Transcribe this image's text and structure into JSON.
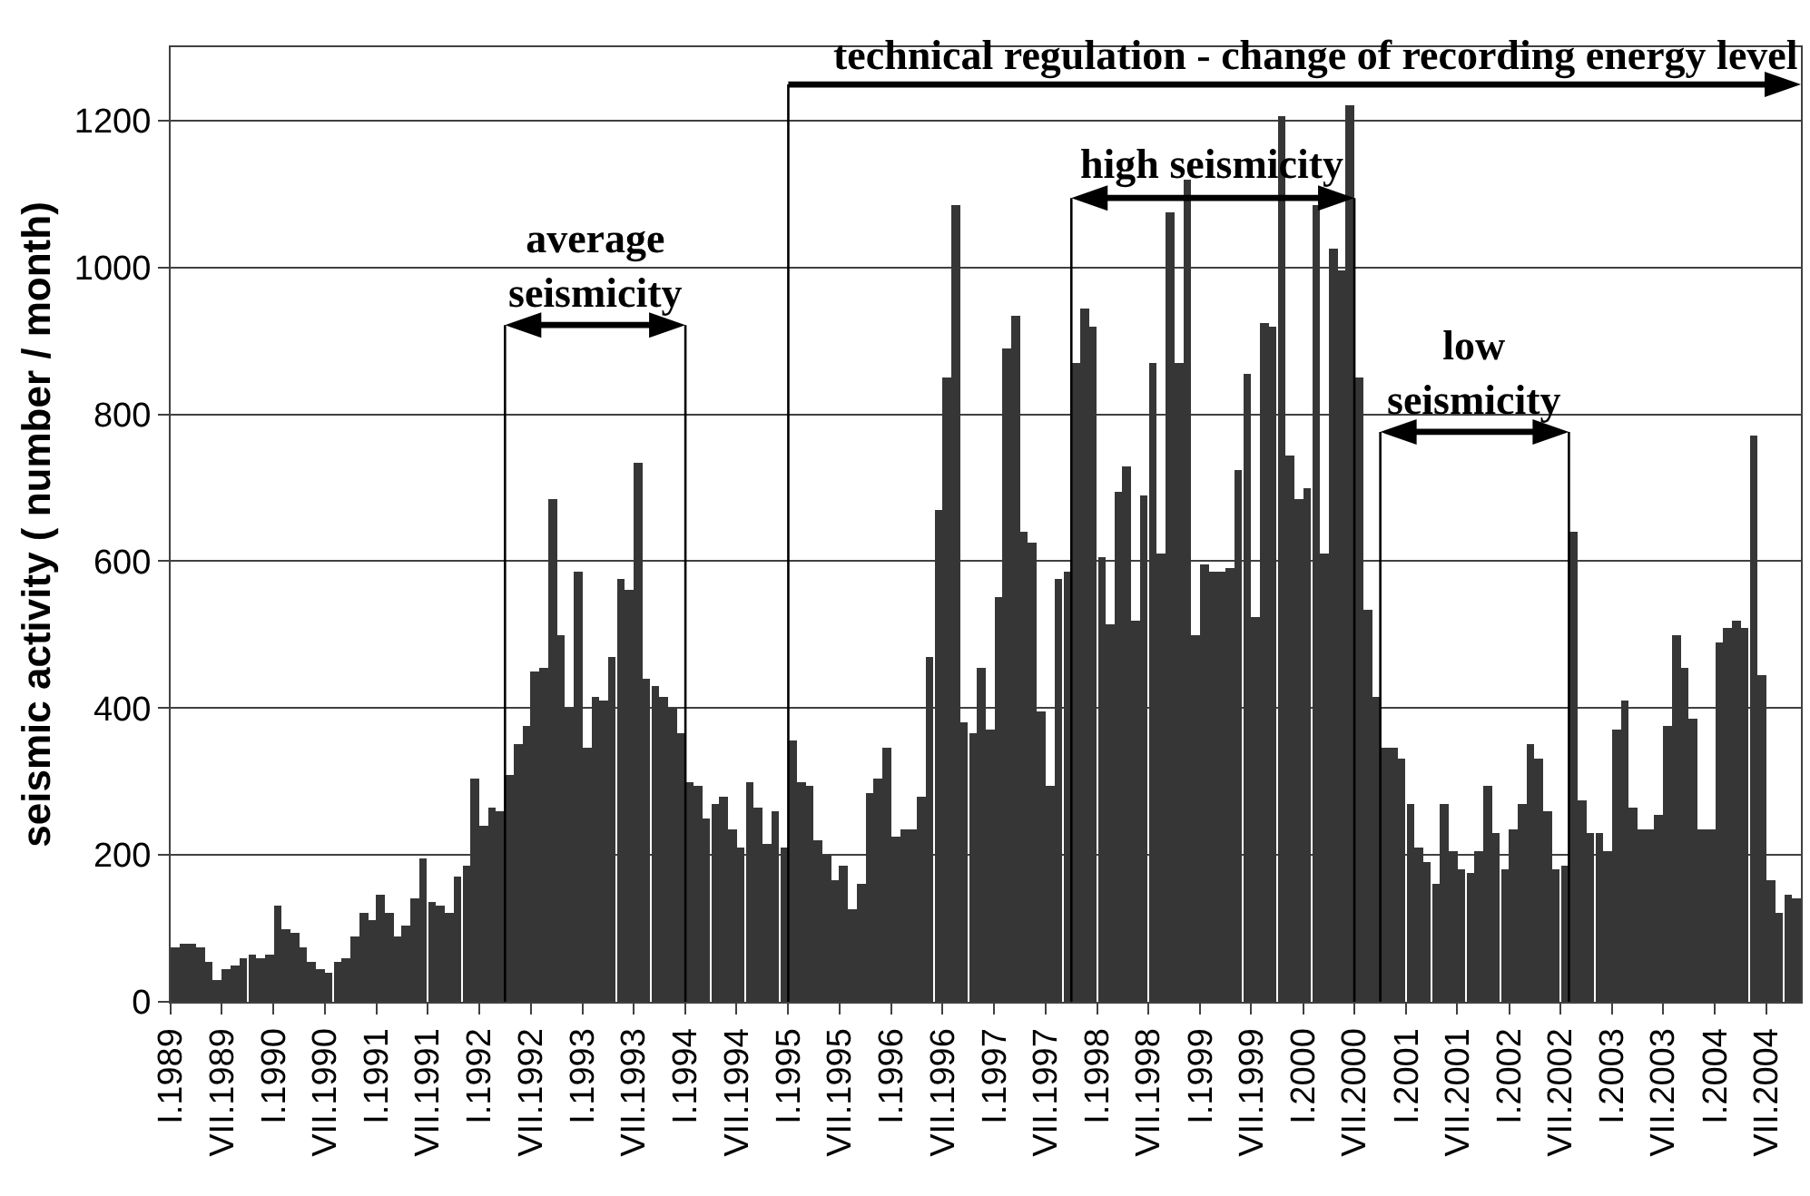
{
  "chart_data": {
    "type": "bar",
    "ylabel": "seismic activity ( number / month)",
    "color": "#363636",
    "x": [
      "1989-01",
      "1989-02",
      "1989-03",
      "1989-04",
      "1989-05",
      "1989-06",
      "1989-07",
      "1989-08",
      "1989-09",
      "1989-10",
      "1989-11",
      "1989-12",
      "1990-01",
      "1990-02",
      "1990-03",
      "1990-04",
      "1990-05",
      "1990-06",
      "1990-07",
      "1990-08",
      "1990-09",
      "1990-10",
      "1990-11",
      "1990-12",
      "1991-01",
      "1991-02",
      "1991-03",
      "1991-04",
      "1991-05",
      "1991-06",
      "1991-07",
      "1991-08",
      "1991-09",
      "1991-10",
      "1991-11",
      "1991-12",
      "1992-01",
      "1992-02",
      "1992-03",
      "1992-04",
      "1992-05",
      "1992-06",
      "1992-07",
      "1992-08",
      "1992-09",
      "1992-10",
      "1992-11",
      "1992-12",
      "1993-01",
      "1993-02",
      "1993-03",
      "1993-04",
      "1993-05",
      "1993-06",
      "1993-07",
      "1993-08",
      "1993-09",
      "1993-10",
      "1993-11",
      "1993-12",
      "1994-01",
      "1994-02",
      "1994-03",
      "1994-04",
      "1994-05",
      "1994-06",
      "1994-07",
      "1994-08",
      "1994-09",
      "1994-10",
      "1994-11",
      "1994-12",
      "1995-01",
      "1995-02",
      "1995-03",
      "1995-04",
      "1995-05",
      "1995-06",
      "1995-07",
      "1995-08",
      "1995-09",
      "1995-10",
      "1995-11",
      "1995-12",
      "1996-01",
      "1996-02",
      "1996-03",
      "1996-04",
      "1996-05",
      "1996-06",
      "1996-07",
      "1996-08",
      "1996-09",
      "1996-10",
      "1996-11",
      "1996-12",
      "1997-01",
      "1997-02",
      "1997-03",
      "1997-04",
      "1997-05",
      "1997-06",
      "1997-07",
      "1997-08",
      "1997-09",
      "1997-10",
      "1997-11",
      "1997-12",
      "1998-01",
      "1998-02",
      "1998-03",
      "1998-04",
      "1998-05",
      "1998-06",
      "1998-07",
      "1998-08",
      "1998-09",
      "1998-10",
      "1998-11",
      "1998-12",
      "1999-01",
      "1999-02",
      "1999-03",
      "1999-04",
      "1999-05",
      "1999-06",
      "1999-07",
      "1999-08",
      "1999-09",
      "1999-10",
      "1999-11",
      "1999-12",
      "2000-01",
      "2000-02",
      "2000-03",
      "2000-04",
      "2000-05",
      "2000-06",
      "2000-07",
      "2000-08",
      "2000-09",
      "2000-10",
      "2000-11",
      "2000-12",
      "2001-01",
      "2001-02",
      "2001-03",
      "2001-04",
      "2001-05",
      "2001-06",
      "2001-07",
      "2001-08",
      "2001-09",
      "2001-10",
      "2001-11",
      "2001-12",
      "2002-01",
      "2002-02",
      "2002-03",
      "2002-04",
      "2002-05",
      "2002-06",
      "2002-07",
      "2002-08",
      "2002-09",
      "2002-10",
      "2002-11",
      "2002-12",
      "2003-01",
      "2003-02",
      "2003-03",
      "2003-04",
      "2003-05",
      "2003-06",
      "2003-07",
      "2003-08",
      "2003-09",
      "2003-10",
      "2003-11",
      "2003-12",
      "2004-01",
      "2004-02",
      "2004-03",
      "2004-04",
      "2004-05",
      "2004-06",
      "2004-07",
      "2004-08",
      "2004-09",
      "2004-10"
    ],
    "values": [
      75,
      80,
      80,
      75,
      55,
      30,
      45,
      50,
      60,
      65,
      60,
      65,
      130,
      100,
      95,
      75,
      55,
      45,
      40,
      55,
      60,
      90,
      120,
      110,
      145,
      120,
      90,
      105,
      140,
      195,
      135,
      130,
      120,
      170,
      185,
      305,
      240,
      265,
      260,
      310,
      350,
      375,
      450,
      455,
      685,
      500,
      400,
      585,
      345,
      415,
      410,
      470,
      575,
      560,
      735,
      440,
      430,
      415,
      400,
      365,
      300,
      295,
      250,
      270,
      280,
      235,
      210,
      300,
      265,
      215,
      260,
      210,
      355,
      300,
      295,
      220,
      200,
      165,
      185,
      125,
      160,
      285,
      305,
      345,
      225,
      235,
      235,
      280,
      470,
      670,
      850,
      1085,
      380,
      365,
      455,
      370,
      550,
      890,
      935,
      640,
      625,
      395,
      295,
      575,
      585,
      870,
      945,
      920,
      605,
      515,
      695,
      730,
      520,
      690,
      870,
      610,
      1075,
      870,
      1120,
      500,
      595,
      585,
      585,
      590,
      725,
      855,
      525,
      925,
      920,
      1205,
      745,
      685,
      700,
      1085,
      610,
      1025,
      995,
      1220,
      850,
      535,
      415,
      345,
      345,
      330,
      270,
      210,
      190,
      160,
      270,
      205,
      180,
      175,
      205,
      295,
      230,
      180,
      235,
      270,
      350,
      330,
      260,
      180,
      185,
      640,
      275,
      230,
      230,
      205,
      370,
      410,
      265,
      235,
      235,
      255,
      375,
      500,
      455,
      385,
      235,
      235,
      490,
      510,
      520,
      510,
      770,
      445,
      165,
      120,
      145,
      140
    ],
    "xlim": [
      "1989-01",
      "2004-11"
    ],
    "xticks": [
      {
        "value": "1989-01",
        "label": "I.1989"
      },
      {
        "value": "1989-07",
        "label": "VII.1989"
      },
      {
        "value": "1990-01",
        "label": "I.1990"
      },
      {
        "value": "1990-07",
        "label": "VII.1990"
      },
      {
        "value": "1991-01",
        "label": "I.1991"
      },
      {
        "value": "1991-07",
        "label": "VII.1991"
      },
      {
        "value": "1992-01",
        "label": "I.1992"
      },
      {
        "value": "1992-07",
        "label": "VII.1992"
      },
      {
        "value": "1993-01",
        "label": "I.1993"
      },
      {
        "value": "1993-07",
        "label": "VII.1993"
      },
      {
        "value": "1994-01",
        "label": "I.1994"
      },
      {
        "value": "1994-07",
        "label": "VII.1994"
      },
      {
        "value": "1995-01",
        "label": "I.1995"
      },
      {
        "value": "1995-07",
        "label": "VII.1995"
      },
      {
        "value": "1996-01",
        "label": "I.1996"
      },
      {
        "value": "1996-07",
        "label": "VII.1996"
      },
      {
        "value": "1997-01",
        "label": "I.1997"
      },
      {
        "value": "1997-07",
        "label": "VII.1997"
      },
      {
        "value": "1998-01",
        "label": "I.1998"
      },
      {
        "value": "1998-07",
        "label": "VII.1998"
      },
      {
        "value": "1999-01",
        "label": "I.1999"
      },
      {
        "value": "1999-07",
        "label": "VII.1999"
      },
      {
        "value": "2000-01",
        "label": "I.2000"
      },
      {
        "value": "2000-07",
        "label": "VII.2000"
      },
      {
        "value": "2001-01",
        "label": "I.2001"
      },
      {
        "value": "2001-07",
        "label": "VII.2001"
      },
      {
        "value": "2002-01",
        "label": "I.2002"
      },
      {
        "value": "2002-07",
        "label": "VII.2002"
      },
      {
        "value": "2003-01",
        "label": "I.2003"
      },
      {
        "value": "2003-07",
        "label": "VII.2003"
      },
      {
        "value": "2004-01",
        "label": "I.2004"
      },
      {
        "value": "2004-07",
        "label": "VII.2004"
      }
    ],
    "ylim": [
      0,
      1300
    ],
    "yticks": [
      0,
      200,
      400,
      600,
      800,
      1000,
      1200
    ],
    "grid": "y",
    "ref_lines": [
      {
        "axis": "x",
        "value": "1992-04"
      },
      {
        "axis": "x",
        "value": "1994-01"
      },
      {
        "axis": "x",
        "value": "1995-01",
        "label": "technical regulation - change of recording energy level"
      },
      {
        "axis": "x",
        "value": "1997-10"
      },
      {
        "axis": "x",
        "value": "2000-07"
      },
      {
        "axis": "x",
        "value": "2000-10"
      },
      {
        "axis": "x",
        "value": "2002-08"
      }
    ],
    "annotations": [
      "average seismicity",
      "high seismicity",
      "low seismicity"
    ]
  }
}
